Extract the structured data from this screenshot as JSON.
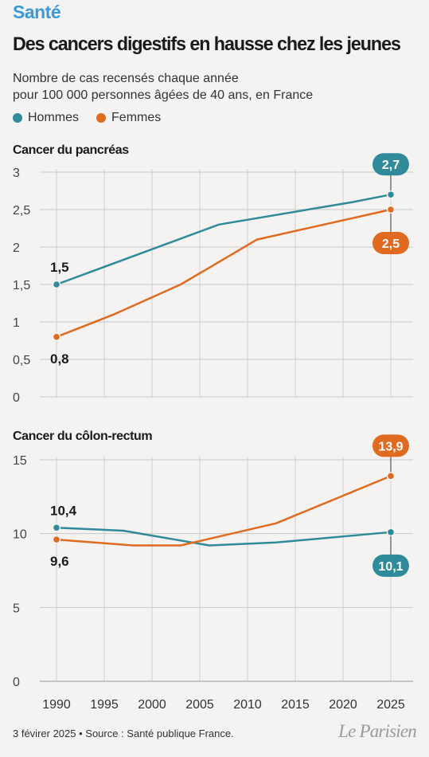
{
  "header": {
    "kicker": "Santé",
    "title": "Des cancers digestifs en hausse chez les jeunes",
    "subtitle_line1": "Nombre de cas recensés chaque année",
    "subtitle_line2": "pour 100 000 personnes âgées de 40 ans, en France"
  },
  "legend": [
    {
      "label": "Hommes",
      "color": "#2f8a9a"
    },
    {
      "label": "Femmes",
      "color": "#e06a1f"
    }
  ],
  "footer": {
    "source": "3 févirer 2025 • Source : Santé publique France.",
    "logo": "Le Parisien"
  },
  "chart_data": [
    {
      "type": "line",
      "title": "Cancer du pancréas",
      "x_ticks": [
        1990,
        1995,
        2000,
        2005,
        2010,
        2015,
        2020,
        2025
      ],
      "xlim": [
        1990,
        2025
      ],
      "ylim": [
        0,
        3
      ],
      "y_ticks": [
        "0",
        "0,5",
        "1",
        "1,5",
        "2",
        "2,5",
        "3"
      ],
      "y_tick_values": [
        0,
        0.5,
        1,
        1.5,
        2,
        2.5,
        3
      ],
      "series": [
        {
          "name": "Hommes",
          "color": "#2f8a9a",
          "x": [
            1990,
            2007,
            2021,
            2025
          ],
          "y": [
            1.5,
            2.3,
            2.6,
            2.7
          ],
          "start_label": "1,5",
          "end_label": "2,7"
        },
        {
          "name": "Femmes",
          "color": "#e06a1f",
          "x": [
            1990,
            1996,
            2003,
            2011,
            2025
          ],
          "y": [
            0.8,
            1.1,
            1.5,
            2.1,
            2.5
          ],
          "start_label": "0,8",
          "end_label": "2,5"
        }
      ]
    },
    {
      "type": "line",
      "title": "Cancer du côlon-rectum",
      "x_ticks": [
        1990,
        1995,
        2000,
        2005,
        2010,
        2015,
        2020,
        2025
      ],
      "xlim": [
        1990,
        2025
      ],
      "ylim": [
        0,
        15
      ],
      "y_ticks": [
        "0",
        "5",
        "10",
        "15"
      ],
      "y_tick_values": [
        0,
        5,
        10,
        15
      ],
      "series": [
        {
          "name": "Hommes",
          "color": "#2f8a9a",
          "x": [
            1990,
            1997,
            2006,
            2013,
            2025
          ],
          "y": [
            10.4,
            10.2,
            9.2,
            9.4,
            10.1
          ],
          "start_label": "10,4",
          "end_label": "10,1"
        },
        {
          "name": "Femmes",
          "color": "#e06a1f",
          "x": [
            1990,
            1998,
            2003,
            2013,
            2025
          ],
          "y": [
            9.6,
            9.2,
            9.2,
            10.7,
            13.9
          ],
          "start_label": "9,6",
          "end_label": "13,9"
        }
      ]
    }
  ]
}
